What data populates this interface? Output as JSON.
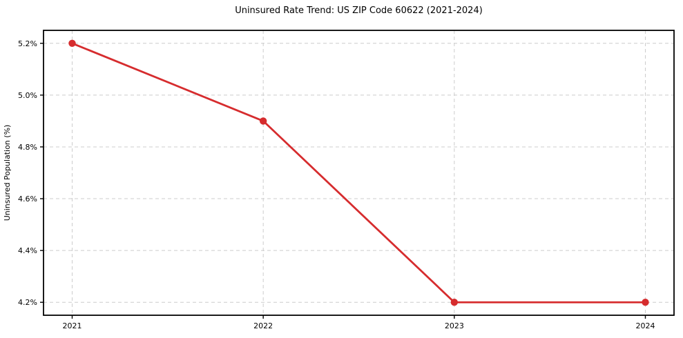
{
  "chart_data": {
    "type": "line",
    "title": "Uninsured Rate Trend: US ZIP Code 60622 (2021-2024)",
    "xlabel": "",
    "ylabel": "Uninsured Population (%)",
    "x": [
      2021,
      2022,
      2023,
      2024
    ],
    "x_tick_labels": [
      "2021",
      "2022",
      "2023",
      "2024"
    ],
    "series": [
      {
        "name": "uninsured-rate",
        "values": [
          5.2,
          4.9,
          4.2,
          4.2
        ]
      }
    ],
    "y_ticks": [
      4.2,
      4.4,
      4.6,
      4.8,
      5.0,
      5.2
    ],
    "y_tick_labels": [
      "4.2%",
      "4.4%",
      "4.6%",
      "4.8%",
      "5.0%",
      "5.2%"
    ],
    "xlim": [
      2020.85,
      2024.15
    ],
    "ylim": [
      4.15,
      5.25
    ],
    "grid": true,
    "grid_style": "dashed",
    "legend": "none",
    "line_color": "#d62c2e",
    "marker": "circle",
    "background_color": "#ffffff",
    "grid_color": "#cccccc",
    "axis_color": "#000000"
  }
}
